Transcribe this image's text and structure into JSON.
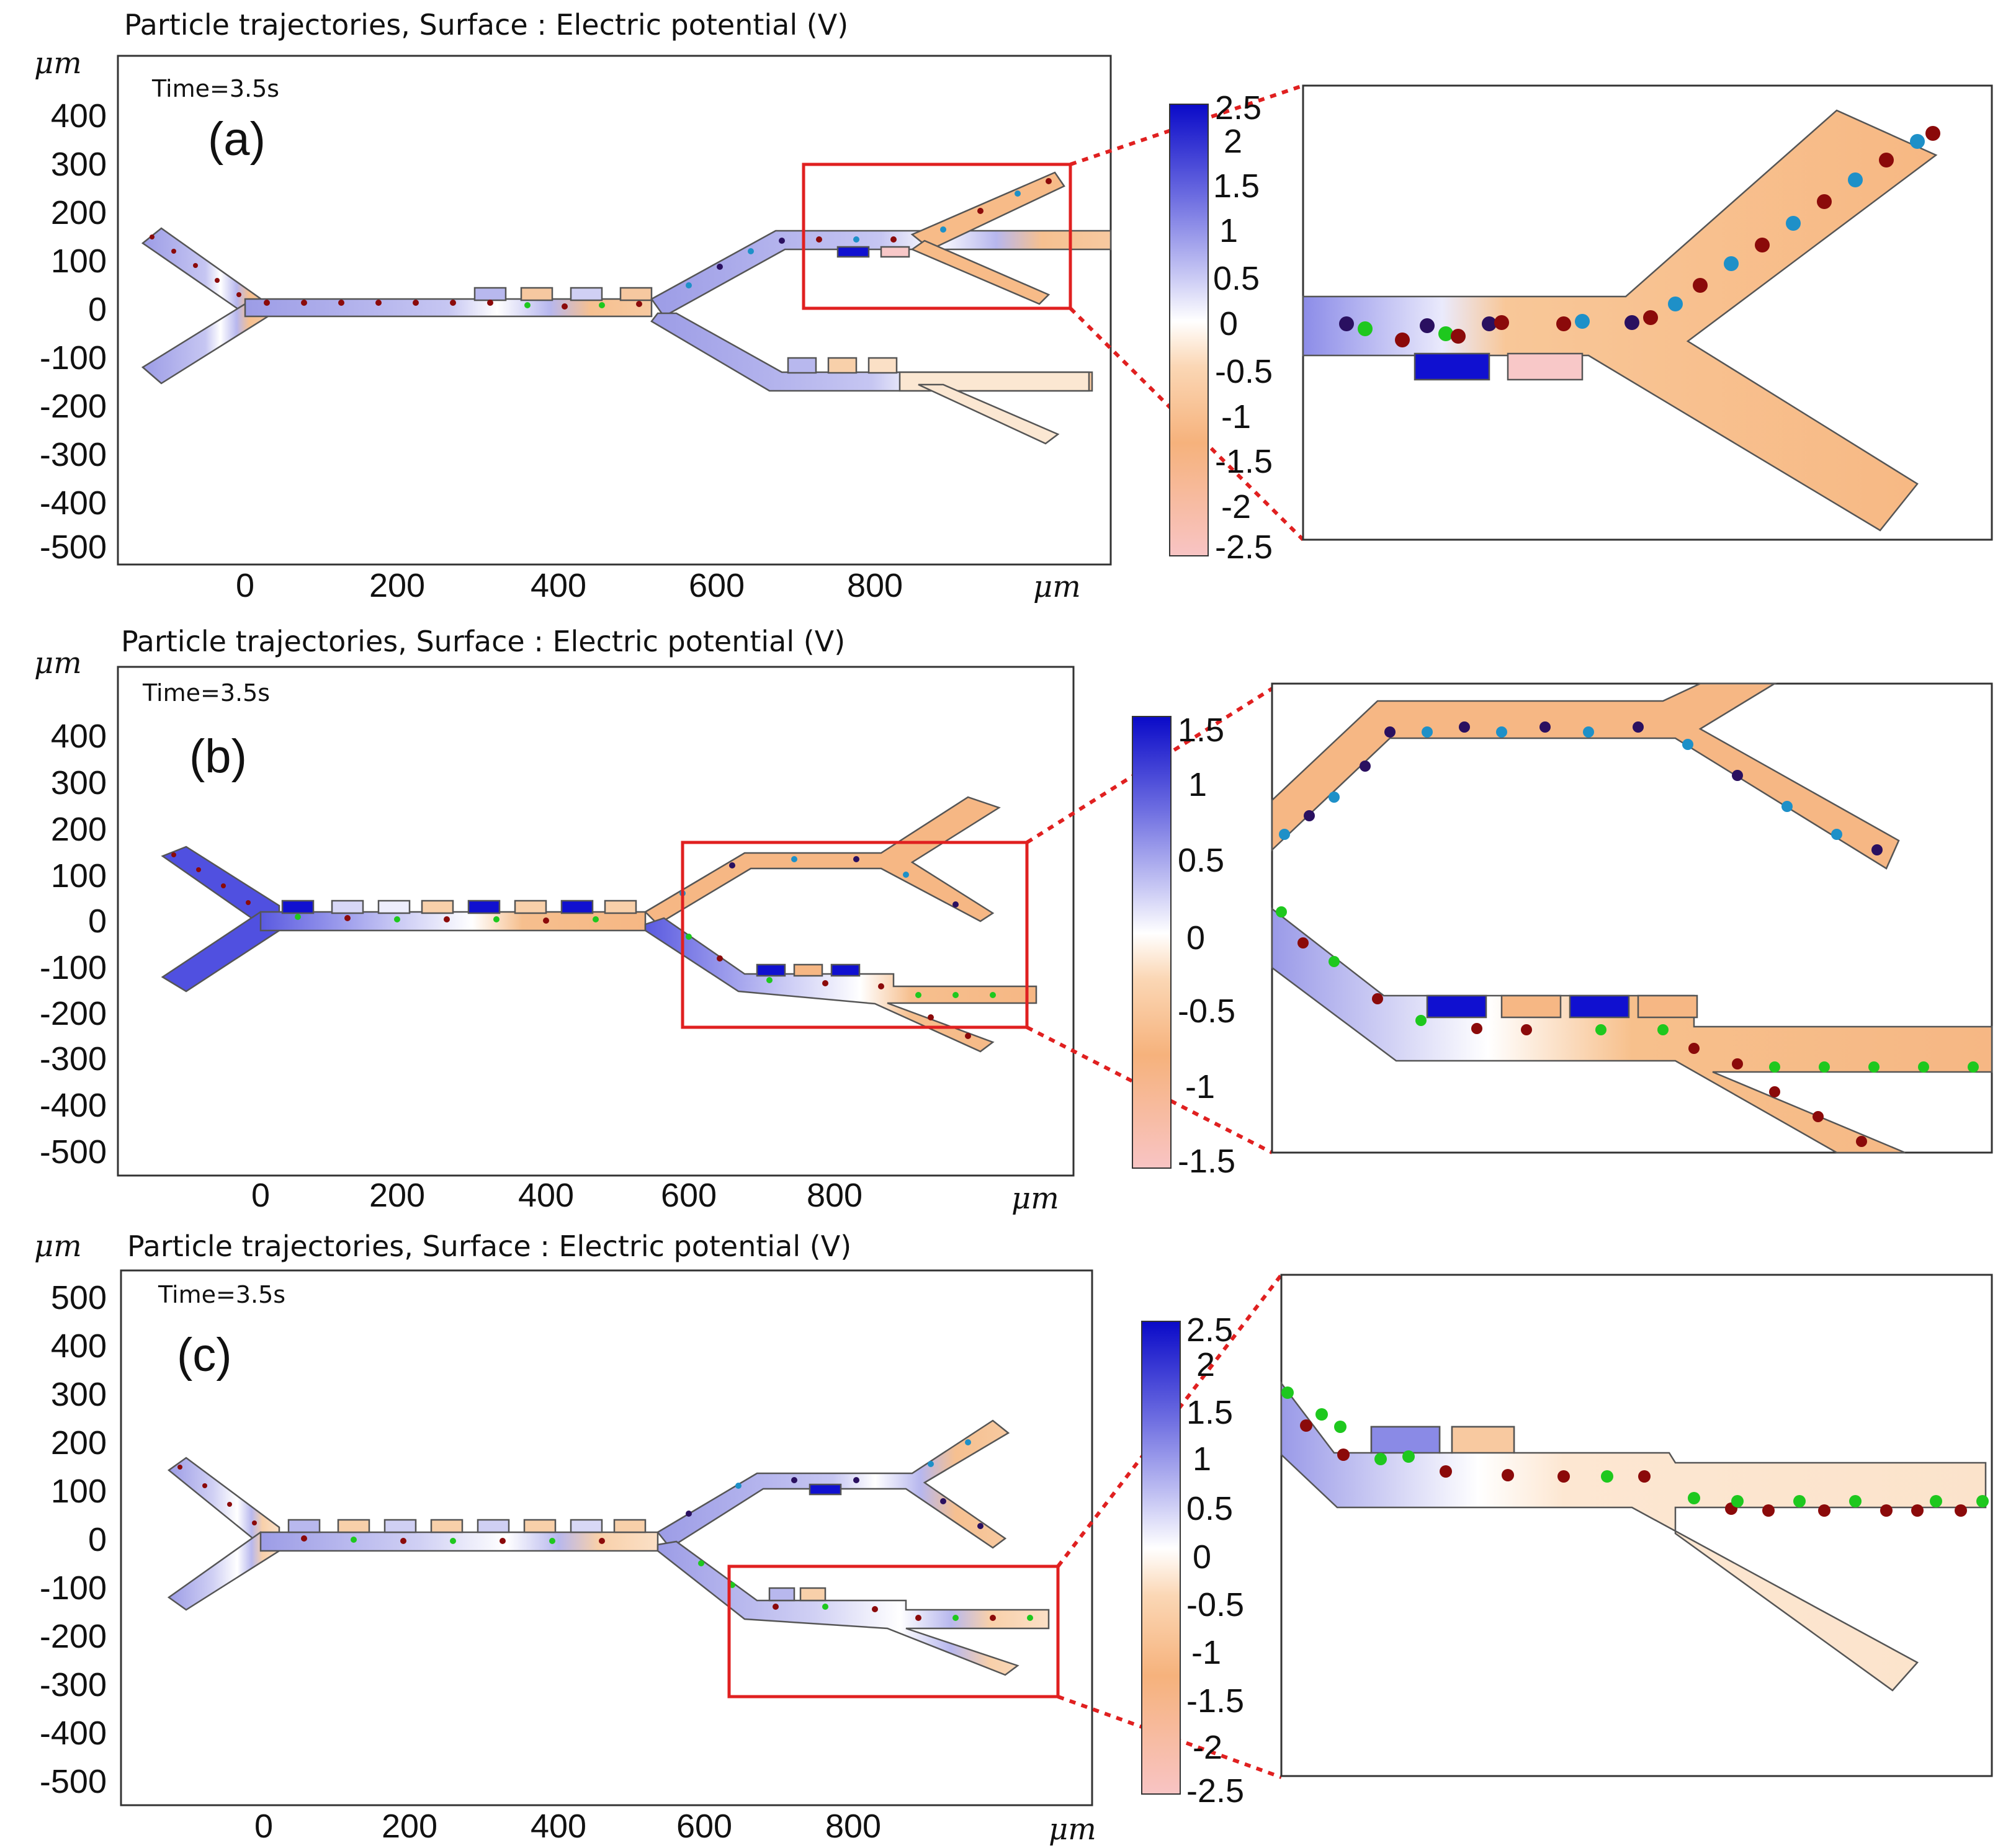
{
  "figure": {
    "title": "Particle trajectories, Surface : Electric potential (V)",
    "unit": "μm",
    "time_label": "Time=3.5s",
    "x_ticks": [
      "0",
      "200",
      "400",
      "600",
      "800"
    ],
    "colors": {
      "positive": "#1010d0",
      "neutral": "#ffffff",
      "negative": "#f5b27a",
      "most_negative": "#f8c8c8",
      "zoom_box": "#e02020",
      "particle_red": "#8b0a0a",
      "particle_green": "#1ec81e",
      "particle_cyan": "#1e90c8",
      "particle_navy": "#2a1060"
    }
  },
  "panels": [
    {
      "label": "(a)",
      "y_ticks": [
        "400",
        "300",
        "200",
        "100",
        "0",
        "-100",
        "-200",
        "-300",
        "-400",
        "-500"
      ],
      "colorbar_ticks": [
        "2.5",
        "2",
        "1.5",
        "1",
        "0.5",
        "0",
        "-0.5",
        "-1",
        "-1.5",
        "-2",
        "-2.5"
      ]
    },
    {
      "label": "(b)",
      "y_ticks": [
        "400",
        "300",
        "200",
        "100",
        "0",
        "-100",
        "-200",
        "-300",
        "-400",
        "-500"
      ],
      "colorbar_ticks": [
        "1.5",
        "1",
        "0.5",
        "0",
        "-0.5",
        "-1",
        "-1.5"
      ]
    },
    {
      "label": "(c)",
      "y_ticks": [
        "500",
        "400",
        "300",
        "200",
        "100",
        "0",
        "-100",
        "-200",
        "-300",
        "-400",
        "-500"
      ],
      "colorbar_ticks": [
        "2.5",
        "2",
        "1.5",
        "1",
        "0.5",
        "0",
        "-0.5",
        "-1",
        "-1.5",
        "-2",
        "-2.5"
      ]
    }
  ]
}
